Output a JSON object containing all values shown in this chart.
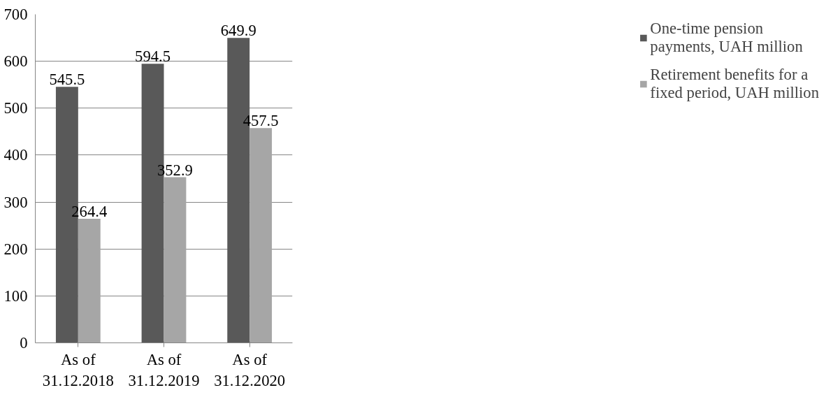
{
  "chart_data": {
    "type": "bar",
    "categories": [
      "As of 31.12.2018",
      "As of 31.12.2019",
      "As of 31.12.2020"
    ],
    "series": [
      {
        "name": "One-time pension payments, UAH million",
        "color": "#595959",
        "values": [
          545.5,
          594.5,
          649.9
        ]
      },
      {
        "name": "Retirement benefits for a fixed period, UAH million",
        "color": "#a6a6a6",
        "values": [
          264.4,
          352.9,
          457.5
        ]
      }
    ],
    "ylim": [
      0,
      700
    ],
    "yticks": [
      0,
      100,
      200,
      300,
      400,
      500,
      600,
      700
    ],
    "grid": "y",
    "legend": "right",
    "data_labels": true
  }
}
